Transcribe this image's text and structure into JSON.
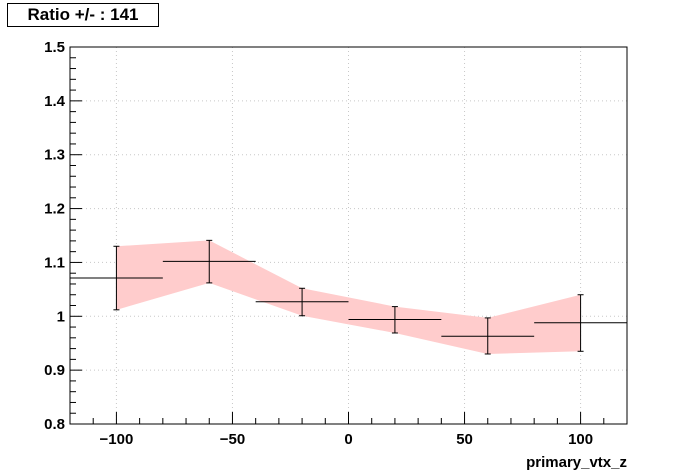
{
  "chart_data": {
    "type": "scatter",
    "title": "Ratio +/- : 141",
    "xlabel": "primary_vtx_z",
    "ylabel": "",
    "xlim": [
      -120,
      120
    ],
    "ylim": [
      0.8,
      1.5
    ],
    "grid": true,
    "x_ticks": [
      -100,
      -50,
      0,
      50,
      100
    ],
    "x_tick_labels": [
      "−100",
      "−50",
      "0",
      "50",
      "100"
    ],
    "y_ticks": [
      0.8,
      0.9,
      1.0,
      1.1,
      1.2,
      1.3,
      1.4,
      1.5
    ],
    "y_tick_labels": [
      "0.8",
      "0.9",
      "1",
      "1.1",
      "1.2",
      "1.3",
      "1.4",
      "1.5"
    ],
    "band_color": "#ffcccc",
    "marker_color": "#000000",
    "points": [
      {
        "x": -100,
        "xlo": -120,
        "xhi": -80,
        "y": 1.071,
        "ylo": 1.012,
        "yhi": 1.13
      },
      {
        "x": -60,
        "xlo": -80,
        "xhi": -40,
        "y": 1.102,
        "ylo": 1.062,
        "yhi": 1.141
      },
      {
        "x": -20,
        "xlo": -40,
        "xhi": 0,
        "y": 1.027,
        "ylo": 1.001,
        "yhi": 1.052
      },
      {
        "x": 20,
        "xlo": 0,
        "xhi": 40,
        "y": 0.994,
        "ylo": 0.969,
        "yhi": 1.018
      },
      {
        "x": 60,
        "xlo": 40,
        "xhi": 80,
        "y": 0.963,
        "ylo": 0.93,
        "yhi": 0.997
      },
      {
        "x": 100,
        "xlo": 80,
        "xhi": 120,
        "y": 0.988,
        "ylo": 0.935,
        "yhi": 1.04
      }
    ]
  }
}
